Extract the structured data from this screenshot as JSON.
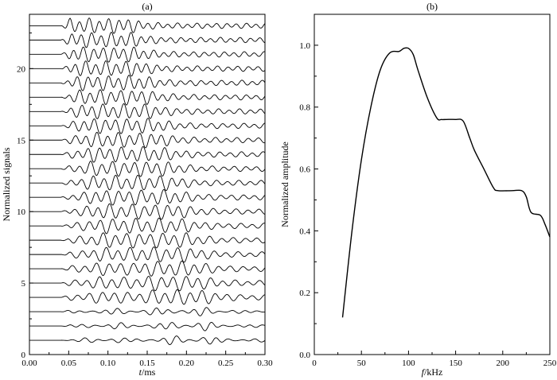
{
  "chart_data": [
    {
      "type": "line",
      "panel_label": "(a)",
      "xlabel_italic": "t",
      "xlabel_unit": "/ms",
      "ylabel": "Normalized signals",
      "xlim": [
        0,
        0.3
      ],
      "ylim": [
        0,
        23.8
      ],
      "xticks": [
        "0.00",
        "0.05",
        "0.10",
        "0.15",
        "0.20",
        "0.25",
        "0.30"
      ],
      "yticks": [
        "0",
        "5",
        "10",
        "15",
        "20"
      ],
      "trace_count": 23,
      "trace_offsets": [
        1,
        2,
        3,
        4,
        5,
        6,
        7,
        8,
        9,
        10,
        11,
        12,
        13,
        14,
        15,
        16,
        17,
        18,
        19,
        20,
        21,
        22,
        23
      ],
      "signal_start_ms": 0.04,
      "signal_end_ms": 0.3
    },
    {
      "type": "line",
      "panel_label": "(b)",
      "xlabel_italic": "f",
      "xlabel_unit": "/kHz",
      "ylabel": "Normalized amplitude",
      "xlim": [
        0,
        250
      ],
      "ylim": [
        0,
        1.1
      ],
      "xticks": [
        "0",
        "50",
        "100",
        "150",
        "200",
        "250"
      ],
      "yticks": [
        "0.0",
        "0.2",
        "0.4",
        "0.6",
        "0.8",
        "1.0"
      ],
      "x": [
        30,
        40,
        50,
        60,
        70,
        80,
        90,
        95,
        100,
        105,
        110,
        120,
        130,
        135,
        140,
        150,
        158,
        165,
        170,
        180,
        190,
        195,
        210,
        220,
        225,
        230,
        240,
        245,
        250
      ],
      "y": [
        0.12,
        0.4,
        0.63,
        0.8,
        0.92,
        0.975,
        0.98,
        0.99,
        0.99,
        0.97,
        0.92,
        0.83,
        0.765,
        0.76,
        0.76,
        0.76,
        0.755,
        0.7,
        0.66,
        0.6,
        0.54,
        0.53,
        0.53,
        0.53,
        0.51,
        0.46,
        0.45,
        0.42,
        0.38
      ]
    }
  ]
}
